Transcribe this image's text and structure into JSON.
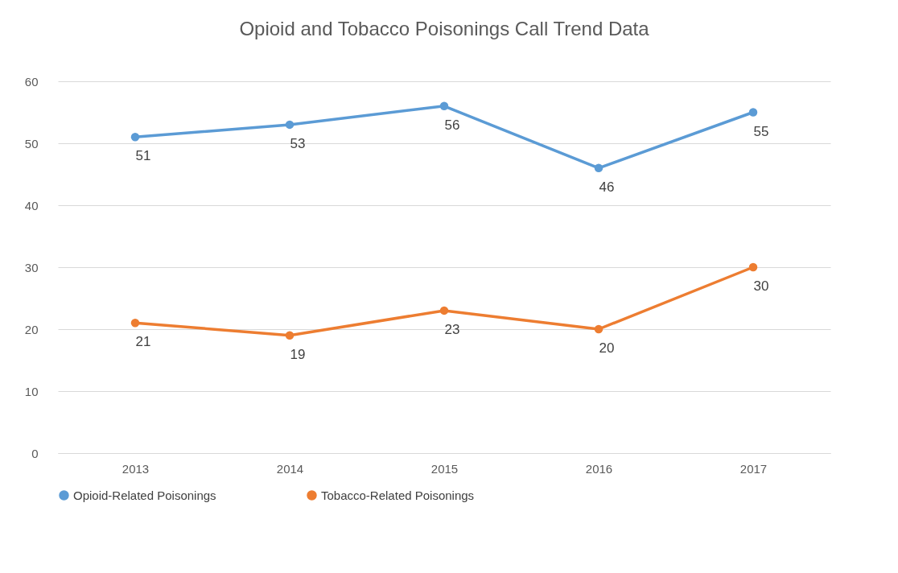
{
  "chart_data": {
    "type": "line",
    "title": "Opioid and Tobacco Poisonings Call Trend Data",
    "categories": [
      "2013",
      "2014",
      "2015",
      "2016",
      "2017"
    ],
    "series": [
      {
        "name": "Opioid-Related Poisonings",
        "color": "#5b9bd5",
        "values": [
          51,
          53,
          56,
          46,
          55
        ]
      },
      {
        "name": "Tobacco-Related Poisonings",
        "color": "#ed7d31",
        "values": [
          21,
          19,
          23,
          20,
          30
        ]
      }
    ],
    "ylim": [
      0,
      60
    ],
    "yticks": [
      0,
      10,
      20,
      30,
      40,
      50,
      60
    ],
    "grid": "y",
    "legend": "bottom",
    "marker": "circle",
    "line_style": "solid",
    "data_labels": true
  }
}
